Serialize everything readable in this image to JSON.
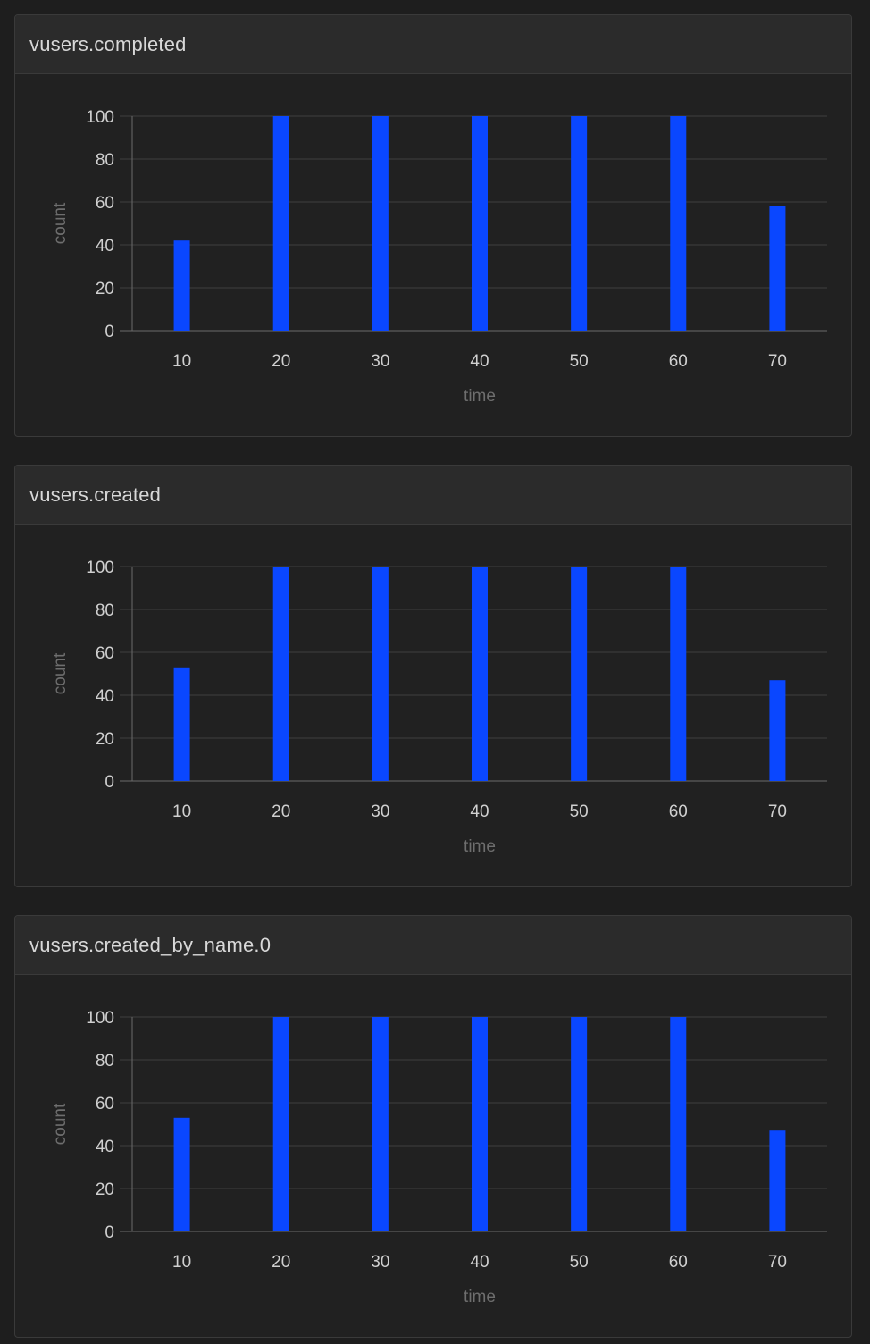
{
  "colors": {
    "bar": "#0a47ff",
    "grid": "#3f3f3f",
    "axis": "#6a6a6a"
  },
  "chart_data": [
    {
      "type": "bar",
      "title": "vusers.completed",
      "xlabel": "time",
      "ylabel": "count",
      "categories": [
        "10",
        "20",
        "30",
        "40",
        "50",
        "60",
        "70"
      ],
      "values": [
        42,
        100,
        100,
        100,
        100,
        100,
        58
      ],
      "yticks": [
        "0",
        "20",
        "40",
        "60",
        "80",
        "100"
      ],
      "ylim": [
        0,
        100
      ],
      "grid": true
    },
    {
      "type": "bar",
      "title": "vusers.created",
      "xlabel": "time",
      "ylabel": "count",
      "categories": [
        "10",
        "20",
        "30",
        "40",
        "50",
        "60",
        "70"
      ],
      "values": [
        53,
        100,
        100,
        100,
        100,
        100,
        47
      ],
      "yticks": [
        "0",
        "20",
        "40",
        "60",
        "80",
        "100"
      ],
      "ylim": [
        0,
        100
      ],
      "grid": true
    },
    {
      "type": "bar",
      "title": "vusers.created_by_name.0",
      "xlabel": "time",
      "ylabel": "count",
      "categories": [
        "10",
        "20",
        "30",
        "40",
        "50",
        "60",
        "70"
      ],
      "values": [
        53,
        100,
        100,
        100,
        100,
        100,
        47
      ],
      "yticks": [
        "0",
        "20",
        "40",
        "60",
        "80",
        "100"
      ],
      "ylim": [
        0,
        100
      ],
      "grid": true
    }
  ]
}
